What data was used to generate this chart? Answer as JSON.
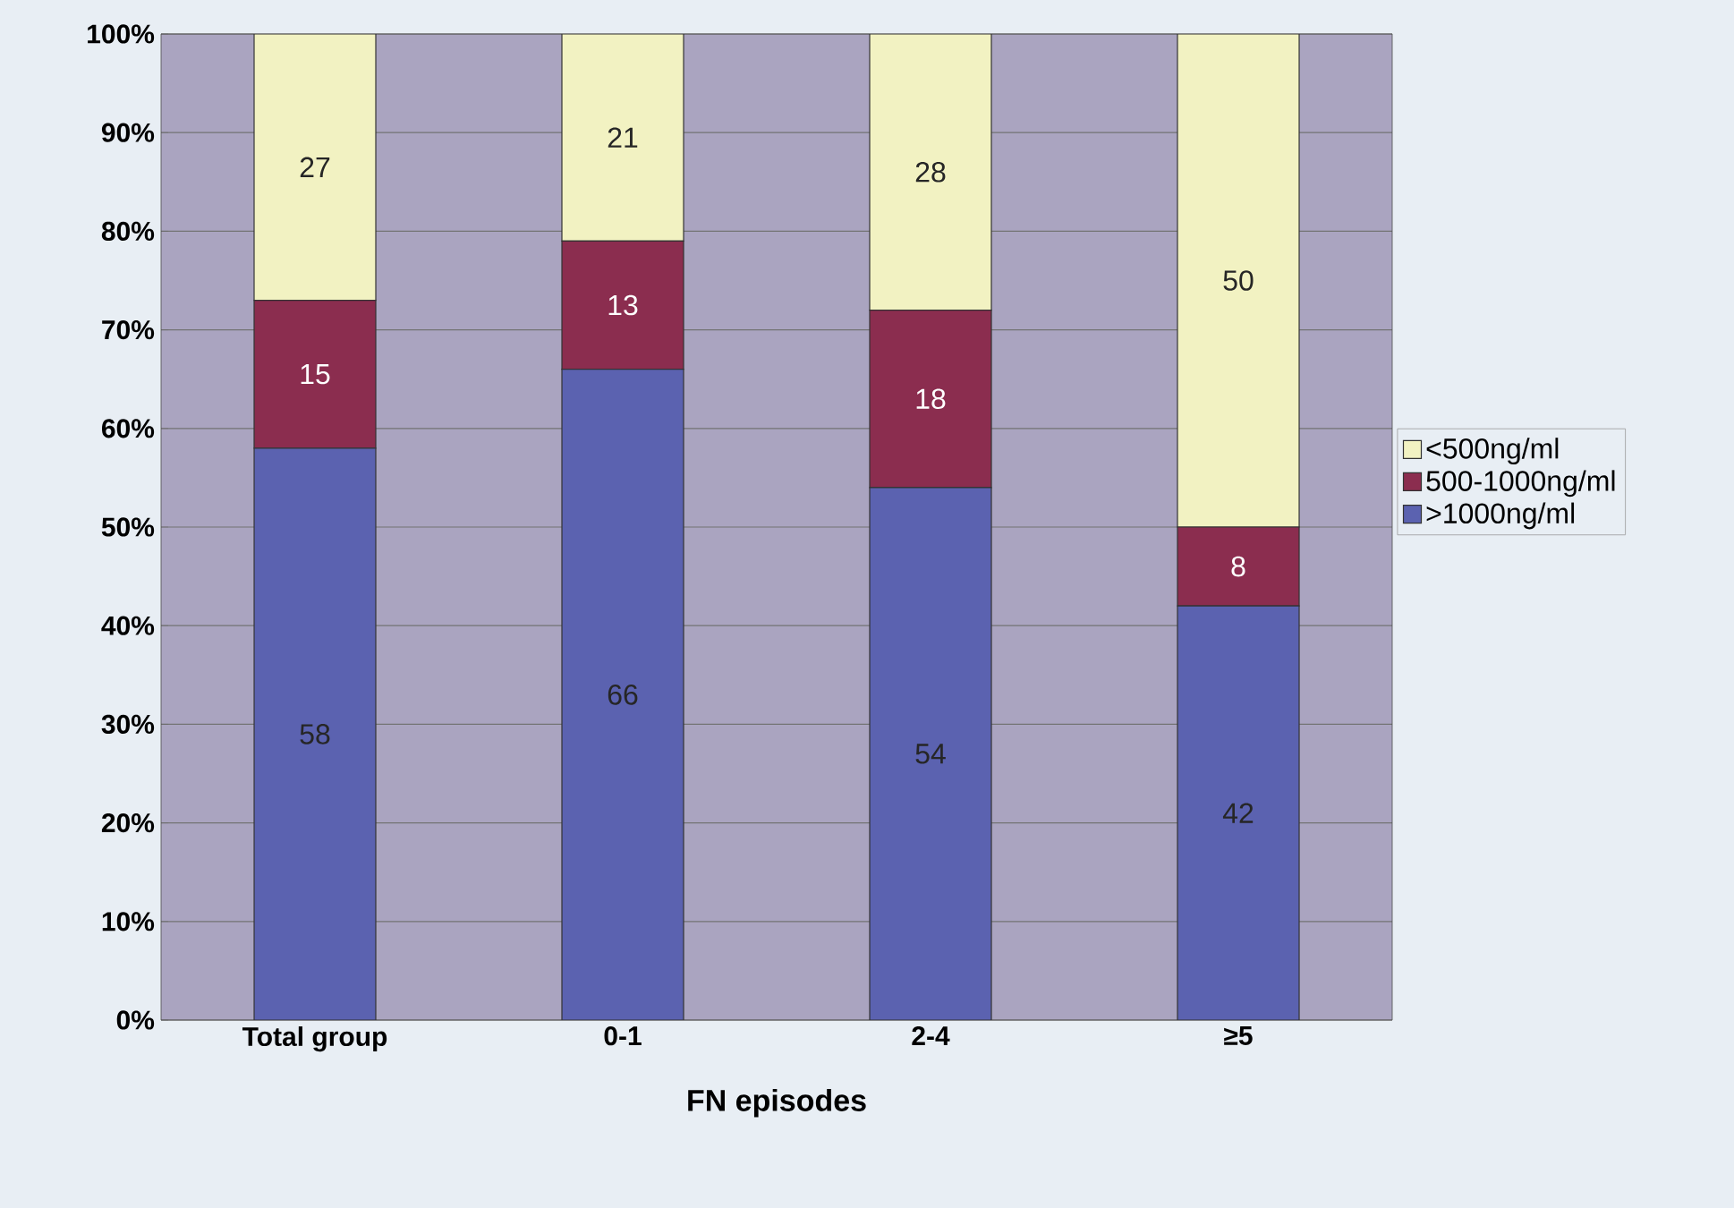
{
  "chart_data": {
    "type": "bar",
    "stacked": true,
    "xlabel": "FN episodes",
    "categories": [
      "Total group",
      "0-1",
      "2-4",
      "≥5"
    ],
    "series": [
      {
        "name": ">1000ng/ml",
        "color": "#5b62b0",
        "values": [
          58,
          66,
          54,
          42
        ]
      },
      {
        "name": "500-1000ng/ml",
        "color": "#8b2d4f",
        "values": [
          15,
          13,
          18,
          8
        ]
      },
      {
        "name": "<500ng/ml",
        "color": "#f2f2c2",
        "values": [
          27,
          21,
          28,
          50
        ]
      }
    ],
    "ylim": [
      0,
      100
    ],
    "yticks": [
      {
        "value": 0,
        "label": "0%"
      },
      {
        "value": 10,
        "label": "10%"
      },
      {
        "value": 20,
        "label": "20%"
      },
      {
        "value": 30,
        "label": "30%"
      },
      {
        "value": 40,
        "label": "40%"
      },
      {
        "value": 50,
        "label": "50%"
      },
      {
        "value": 60,
        "label": "60%"
      },
      {
        "value": 70,
        "label": "70%"
      },
      {
        "value": 80,
        "label": "80%"
      },
      {
        "value": 90,
        "label": "90%"
      },
      {
        "value": 100,
        "label": "100%"
      }
    ],
    "grid": "y",
    "legend": "right",
    "data_labels": true
  }
}
